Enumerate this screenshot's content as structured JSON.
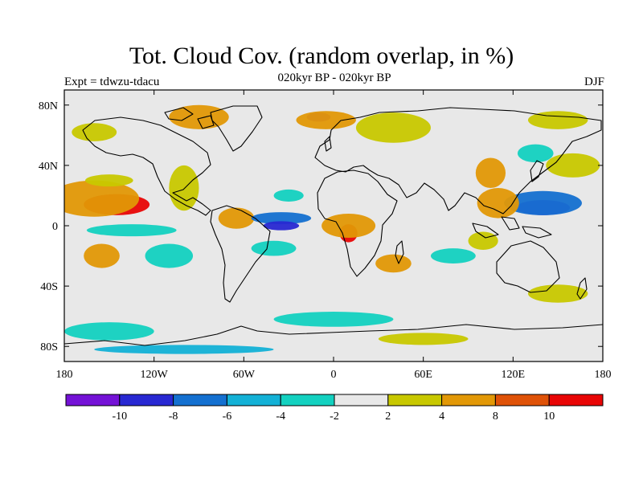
{
  "title": "Tot. Cloud Cov. (random overlap, in %)",
  "subtitle": "020kyr BP - 020kyr BP",
  "expt_label": "Expt = tdwzu-tdacu",
  "season": "DJF",
  "colors": {
    "background": "#e8e8e8",
    "coast": "#000000",
    "scale": [
      "#7412d6",
      "#2828d2",
      "#1470d0",
      "#13b1d6",
      "#13d1c0",
      "#e8e8e8",
      "#c8c800",
      "#e29806",
      "#df5208",
      "#e80505"
    ]
  },
  "chart_data": {
    "type": "heatmap",
    "projection": "cylindrical-equidistant",
    "xlim": [
      -180,
      180
    ],
    "ylim": [
      -90,
      90
    ],
    "x_ticks": [
      {
        "value": -180,
        "label": "180"
      },
      {
        "value": -120,
        "label": "120W"
      },
      {
        "value": -60,
        "label": "60W"
      },
      {
        "value": 0,
        "label": "0"
      },
      {
        "value": 60,
        "label": "60E"
      },
      {
        "value": 120,
        "label": "120E"
      },
      {
        "value": 180,
        "label": "180"
      }
    ],
    "y_ticks": [
      {
        "value": 80,
        "label": "80N"
      },
      {
        "value": 40,
        "label": "40N"
      },
      {
        "value": 0,
        "label": "0"
      },
      {
        "value": -40,
        "label": "40S"
      },
      {
        "value": -80,
        "label": "80S"
      }
    ],
    "colorbar": {
      "labels": [
        "-10",
        "-8",
        "-6",
        "-4",
        "-2",
        "2",
        "4",
        "8",
        "10"
      ]
    },
    "anomalies": [
      {
        "lon": -145,
        "lat": 14,
        "rx": 22,
        "ry": 7,
        "level": 9
      },
      {
        "lon": -160,
        "lat": 18,
        "rx": 30,
        "ry": 12,
        "level": 7
      },
      {
        "lon": -150,
        "lat": 30,
        "rx": 16,
        "ry": 4,
        "level": 6
      },
      {
        "lon": -135,
        "lat": -3,
        "rx": 30,
        "ry": 4,
        "level": 4
      },
      {
        "lon": -155,
        "lat": -20,
        "rx": 12,
        "ry": 8,
        "level": 7
      },
      {
        "lon": -110,
        "lat": -20,
        "rx": 16,
        "ry": 8,
        "level": 4
      },
      {
        "lon": -100,
        "lat": 25,
        "rx": 10,
        "ry": 15,
        "level": 6
      },
      {
        "lon": -65,
        "lat": 5,
        "rx": 12,
        "ry": 7,
        "level": 7
      },
      {
        "lon": -35,
        "lat": 5,
        "rx": 20,
        "ry": 4,
        "level": 2
      },
      {
        "lon": -35,
        "lat": 0,
        "rx": 12,
        "ry": 3,
        "level": 1
      },
      {
        "lon": -40,
        "lat": -15,
        "rx": 15,
        "ry": 5,
        "level": 4
      },
      {
        "lon": -30,
        "lat": 20,
        "rx": 10,
        "ry": 4,
        "level": 4
      },
      {
        "lon": 10,
        "lat": -5,
        "rx": 6,
        "ry": 6,
        "level": 9
      },
      {
        "lon": 10,
        "lat": 0,
        "rx": 18,
        "ry": 8,
        "level": 7
      },
      {
        "lon": 40,
        "lat": -25,
        "rx": 12,
        "ry": 6,
        "level": 7
      },
      {
        "lon": 140,
        "lat": 12,
        "rx": 18,
        "ry": 5,
        "level": 0
      },
      {
        "lon": 140,
        "lat": 15,
        "rx": 26,
        "ry": 8,
        "level": 2
      },
      {
        "lon": 110,
        "lat": 15,
        "rx": 14,
        "ry": 10,
        "level": 7
      },
      {
        "lon": 160,
        "lat": 40,
        "rx": 18,
        "ry": 8,
        "level": 6
      },
      {
        "lon": 105,
        "lat": 35,
        "rx": 10,
        "ry": 10,
        "level": 7
      },
      {
        "lon": 135,
        "lat": 48,
        "rx": 12,
        "ry": 6,
        "level": 4
      },
      {
        "lon": 80,
        "lat": -20,
        "rx": 15,
        "ry": 5,
        "level": 4
      },
      {
        "lon": 100,
        "lat": -10,
        "rx": 10,
        "ry": 6,
        "level": 6
      },
      {
        "lon": -10,
        "lat": 72,
        "rx": 8,
        "ry": 3,
        "level": 0
      },
      {
        "lon": -5,
        "lat": 70,
        "rx": 20,
        "ry": 6,
        "level": 7
      },
      {
        "lon": -90,
        "lat": 72,
        "rx": 20,
        "ry": 8,
        "level": 7
      },
      {
        "lon": 40,
        "lat": 65,
        "rx": 25,
        "ry": 10,
        "level": 6
      },
      {
        "lon": -160,
        "lat": 62,
        "rx": 15,
        "ry": 6,
        "level": 6
      },
      {
        "lon": 150,
        "lat": 70,
        "rx": 20,
        "ry": 6,
        "level": 6
      },
      {
        "lon": 0,
        "lat": -62,
        "rx": 40,
        "ry": 5,
        "level": 4
      },
      {
        "lon": -150,
        "lat": -70,
        "rx": 30,
        "ry": 6,
        "level": 4
      },
      {
        "lon": 60,
        "lat": -75,
        "rx": 30,
        "ry": 4,
        "level": 6
      },
      {
        "lon": -100,
        "lat": -82,
        "rx": 60,
        "ry": 3,
        "level": 3
      },
      {
        "lon": 150,
        "lat": -45,
        "rx": 20,
        "ry": 6,
        "level": 6
      }
    ]
  }
}
